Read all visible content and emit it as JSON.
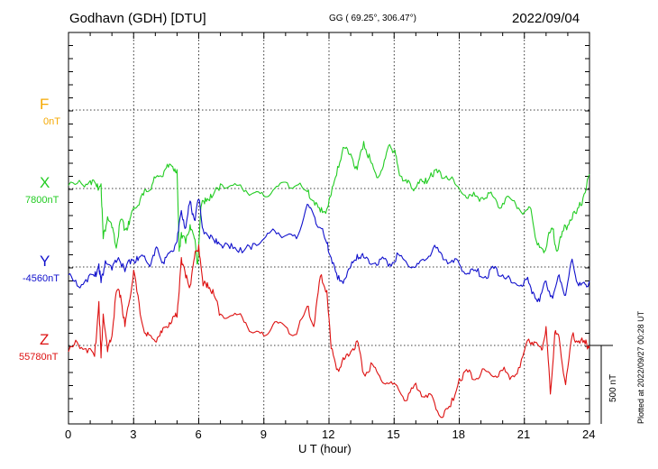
{
  "header": {
    "station": "Godhavn (GDH)  [DTU]",
    "coords": "GG ( 69.25°, 306.47°)",
    "date": "2022/09/04"
  },
  "components": [
    {
      "letter": "F",
      "baseline": "0nT",
      "color": "#f5a800"
    },
    {
      "letter": "X",
      "baseline": "7800nT",
      "color": "#22cc22"
    },
    {
      "letter": "Y",
      "baseline": "-4560nT",
      "color": "#1010cc"
    },
    {
      "letter": "Z",
      "baseline": "55780nT",
      "color": "#dd1010"
    }
  ],
  "axis": {
    "xlabel": "U T (hour)",
    "xticks": [
      "0",
      "3",
      "6",
      "9",
      "12",
      "15",
      "18",
      "21",
      "24"
    ]
  },
  "scale_bar": {
    "label": "500 nT"
  },
  "plotted_note": "Plotted at 2022/09/27 00:28 UT",
  "chart_data": {
    "type": "line",
    "title": "Godhavn (GDH)  [DTU]",
    "xlabel": "U T (hour)",
    "ylabel": "",
    "xlim": [
      0,
      24
    ],
    "grid": true,
    "units": "nT (offset from baseline)",
    "scale_nT": 500,
    "series": [
      {
        "name": "X",
        "color": "#22cc22",
        "x": [
          0,
          0.6,
          1.0,
          1.3,
          1.5,
          1.6,
          1.8,
          2.0,
          2.2,
          2.4,
          2.6,
          2.8,
          3.0,
          3.3,
          3.6,
          3.9,
          4.2,
          4.5,
          4.8,
          5.0,
          5.1,
          5.2,
          5.4,
          5.6,
          5.8,
          5.95,
          6.1,
          6.3,
          6.6,
          7.0,
          7.5,
          8.0,
          8.5,
          9.0,
          9.5,
          10.0,
          10.5,
          11.0,
          11.3,
          11.6,
          11.9,
          12.1,
          12.4,
          12.7,
          13.0,
          13.3,
          13.6,
          13.9,
          14.2,
          14.5,
          14.8,
          15.0,
          15.2,
          15.5,
          15.8,
          16.1,
          16.4,
          16.7,
          17.0,
          17.4,
          17.8,
          18.2,
          18.6,
          19.0,
          19.4,
          19.8,
          20.2,
          20.6,
          21.0,
          21.3,
          21.6,
          21.9,
          22.1,
          22.3,
          22.5,
          22.8,
          23.1,
          23.4,
          23.7,
          24.0
        ],
        "y": [
          20,
          30,
          50,
          10,
          30,
          -320,
          -180,
          -250,
          -380,
          -200,
          -260,
          -230,
          -120,
          -70,
          -20,
          40,
          80,
          130,
          140,
          120,
          -400,
          -280,
          -350,
          -230,
          -320,
          -480,
          -120,
          -60,
          -60,
          30,
          20,
          0,
          -30,
          -50,
          0,
          40,
          20,
          -20,
          -80,
          -150,
          -130,
          -40,
          140,
          260,
          220,
          120,
          300,
          180,
          70,
          140,
          280,
          240,
          120,
          50,
          0,
          40,
          30,
          100,
          100,
          80,
          30,
          -40,
          -50,
          -60,
          -30,
          -120,
          -50,
          -100,
          -150,
          -130,
          -360,
          -410,
          -300,
          -260,
          -400,
          -270,
          -200,
          -160,
          -60,
          90
        ]
      },
      {
        "name": "Y",
        "color": "#1010cc",
        "x": [
          0,
          0.4,
          0.8,
          1.2,
          1.4,
          1.5,
          1.7,
          2.0,
          2.3,
          2.6,
          2.9,
          3.2,
          3.5,
          3.8,
          4.1,
          4.4,
          4.7,
          5.0,
          5.2,
          5.4,
          5.6,
          5.8,
          6.0,
          6.2,
          6.5,
          6.8,
          7.1,
          7.5,
          8.0,
          8.5,
          9.0,
          9.5,
          10.0,
          10.5,
          11.0,
          11.3,
          11.6,
          11.9,
          12.1,
          12.4,
          12.7,
          13.0,
          13.3,
          13.6,
          14.0,
          14.4,
          14.8,
          15.2,
          15.6,
          16.0,
          16.4,
          16.8,
          17.2,
          17.6,
          18.0,
          18.4,
          18.8,
          19.2,
          19.6,
          20.0,
          20.4,
          20.8,
          21.1,
          21.4,
          21.7,
          22.0,
          22.3,
          22.6,
          22.9,
          23.2,
          23.5,
          23.8,
          24.0
        ],
        "y": [
          -50,
          -120,
          -80,
          -60,
          20,
          -100,
          40,
          -20,
          60,
          -30,
          50,
          40,
          70,
          20,
          120,
          20,
          100,
          160,
          360,
          250,
          420,
          300,
          430,
          240,
          180,
          180,
          120,
          150,
          90,
          150,
          180,
          230,
          200,
          180,
          400,
          330,
          250,
          150,
          60,
          -80,
          -80,
          0,
          80,
          60,
          20,
          50,
          20,
          80,
          20,
          0,
          40,
          120,
          80,
          30,
          20,
          -40,
          -30,
          -60,
          -10,
          -50,
          -100,
          -120,
          -80,
          -160,
          -220,
          -90,
          -200,
          -50,
          -180,
          50,
          -120,
          -110,
          -90
        ]
      },
      {
        "name": "Z",
        "color": "#dd1010",
        "x": [
          0,
          0.4,
          0.8,
          1.2,
          1.4,
          1.5,
          1.6,
          1.8,
          2.0,
          2.2,
          2.4,
          2.6,
          2.8,
          3.0,
          3.3,
          3.6,
          3.9,
          4.2,
          4.5,
          4.8,
          5.0,
          5.2,
          5.4,
          5.6,
          5.8,
          6.0,
          6.2,
          6.4,
          6.7,
          7.0,
          7.5,
          8.0,
          8.5,
          9.0,
          9.5,
          10.0,
          10.5,
          11.0,
          11.3,
          11.6,
          11.9,
          12.1,
          12.4,
          12.7,
          13.0,
          13.3,
          13.6,
          14.0,
          14.4,
          14.8,
          15.2,
          15.6,
          16.0,
          16.4,
          16.8,
          17.2,
          17.6,
          18.0,
          18.4,
          18.8,
          19.2,
          19.6,
          20.0,
          20.4,
          20.8,
          21.2,
          21.5,
          21.8,
          22.0,
          22.2,
          22.4,
          22.6,
          22.9,
          23.2,
          23.5,
          23.8,
          24.0
        ],
        "y": [
          -40,
          20,
          -20,
          -70,
          280,
          -80,
          200,
          -40,
          60,
          340,
          320,
          120,
          280,
          480,
          200,
          60,
          40,
          60,
          120,
          180,
          180,
          560,
          430,
          380,
          560,
          640,
          380,
          400,
          320,
          200,
          190,
          180,
          80,
          60,
          150,
          120,
          70,
          250,
          120,
          440,
          350,
          -20,
          -150,
          -90,
          -40,
          30,
          -180,
          -120,
          -220,
          -240,
          -280,
          -350,
          -240,
          -330,
          -340,
          -460,
          -390,
          -210,
          -170,
          -210,
          -160,
          -200,
          -160,
          -200,
          -140,
          40,
          20,
          -30,
          120,
          -310,
          80,
          50,
          -250,
          60,
          30,
          10,
          0
        ]
      }
    ]
  }
}
